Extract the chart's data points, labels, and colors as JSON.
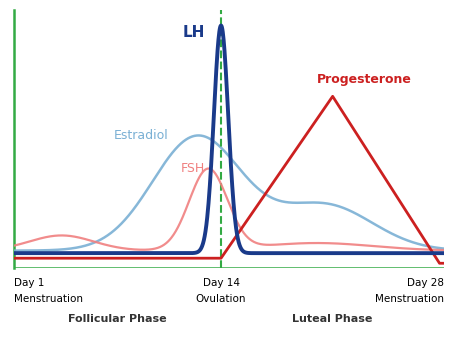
{
  "background_color": "#ffffff",
  "colors": {
    "LH": "#1a3a8a",
    "FSH": "#f08080",
    "Estradiol": "#7ab0d4",
    "Progesterone": "#cc2020",
    "axes_green": "#33aa44",
    "ovulation_line": "#33aa44"
  },
  "labels": {
    "LH": "LH",
    "FSH": "FSH",
    "Estradiol": "Estradiol",
    "Progesterone": "Progesterone",
    "day1_top": "Day 1",
    "day1_bot": "Menstruation",
    "day14_top": "Day 14",
    "day14_bot": "Ovulation",
    "day28_top": "Day 28",
    "day28_bot": "Menstruation",
    "follicular": "Follicular Phase",
    "luteal": "Luteal Phase"
  },
  "linewidths": {
    "LH": 2.8,
    "FSH": 1.6,
    "Estradiol": 1.8,
    "Progesterone": 2.0
  }
}
